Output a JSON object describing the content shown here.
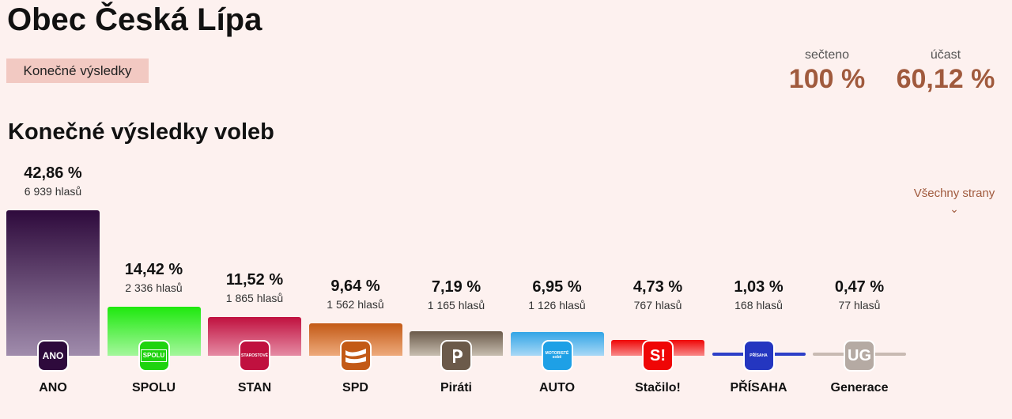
{
  "header": {
    "title": "Obec Česká Lípa",
    "tag": "Konečné výsledky",
    "counted_label": "sečteno",
    "counted_value": "100 %",
    "turnout_label": "účast",
    "turnout_value": "60,12 %"
  },
  "section_title": "Konečné výsledky voleb",
  "all_parties": {
    "label": "Všechny strany",
    "chevron": "chevron-down-icon"
  },
  "chart_data": {
    "type": "bar",
    "title": "Konečné výsledky voleb",
    "ylim": [
      0,
      42.86
    ],
    "categories": [
      "ANO",
      "SPOLU",
      "STAN",
      "SPD",
      "Piráti",
      "AUTO",
      "Stačilo!",
      "PŘÍSAHA",
      "Generace"
    ],
    "values": [
      42.86,
      14.42,
      11.52,
      9.64,
      7.19,
      6.95,
      4.73,
      1.03,
      0.47
    ],
    "percent_labels": [
      "42,86 %",
      "14,42 %",
      "11,52 %",
      "9,64 %",
      "7,19 %",
      "6,95 %",
      "4,73 %",
      "1,03 %",
      "0,47 %"
    ],
    "votes": [
      6939,
      2336,
      1865,
      1562,
      1165,
      1126,
      767,
      168,
      77
    ],
    "vote_labels": [
      "6 939 hlasů",
      "2 336 hlasů",
      "1 865 hlasů",
      "1 562 hlasů",
      "1 165 hlasů",
      "1 126 hlasů",
      "767 hlasů",
      "168 hlasů",
      "77 hlasů"
    ],
    "logo_text": [
      "ANO",
      "SPOLU",
      "STAROSTOVÉ",
      "",
      "",
      "MOTORISTÉ sobě",
      "S!",
      "PŘÍSAHA",
      "UG"
    ],
    "colors": [
      [
        "#2e0a3c",
        "#a08cac"
      ],
      [
        "#1ee80e",
        "#a4f79c"
      ],
      [
        "#c0113f",
        "#e58ba4"
      ],
      [
        "#c35a16",
        "#eeaa7c"
      ],
      [
        "#6b5a4a",
        "#c8beb0"
      ],
      [
        "#32a5e6",
        "#a8d8f6"
      ],
      [
        "#ef0606",
        "#f88888"
      ],
      [
        "#2d3fc8",
        "#2d3fc8"
      ],
      [
        "#c8bab2",
        "#c8bab2"
      ]
    ],
    "logo_colors": [
      "#2e0a3c",
      "#1ed30e",
      "#c0113f",
      "#c35a16",
      "#6b5a4a",
      "#1ea0e6",
      "#ef0606",
      "#2436c0",
      "#b5aaa3"
    ]
  }
}
